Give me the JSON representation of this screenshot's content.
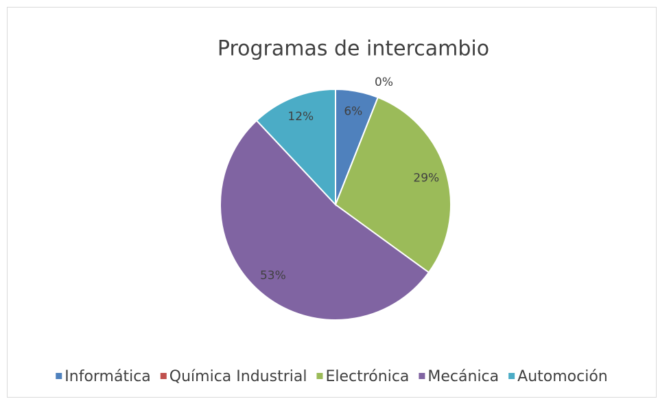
{
  "chart_data": {
    "type": "pie",
    "title": "Programas de intercambio",
    "categories": [
      "Informática",
      "Química Industrial",
      "Electrónica",
      "Mecánica",
      "Automoción"
    ],
    "values": [
      6,
      0,
      29,
      53,
      12
    ],
    "value_labels": [
      "6%",
      "0%",
      "29%",
      "53%",
      "12%"
    ],
    "colors": [
      "#4f81bd",
      "#c0504d",
      "#9bbb59",
      "#8064a2",
      "#4bacc6"
    ],
    "legend": "bottom"
  }
}
